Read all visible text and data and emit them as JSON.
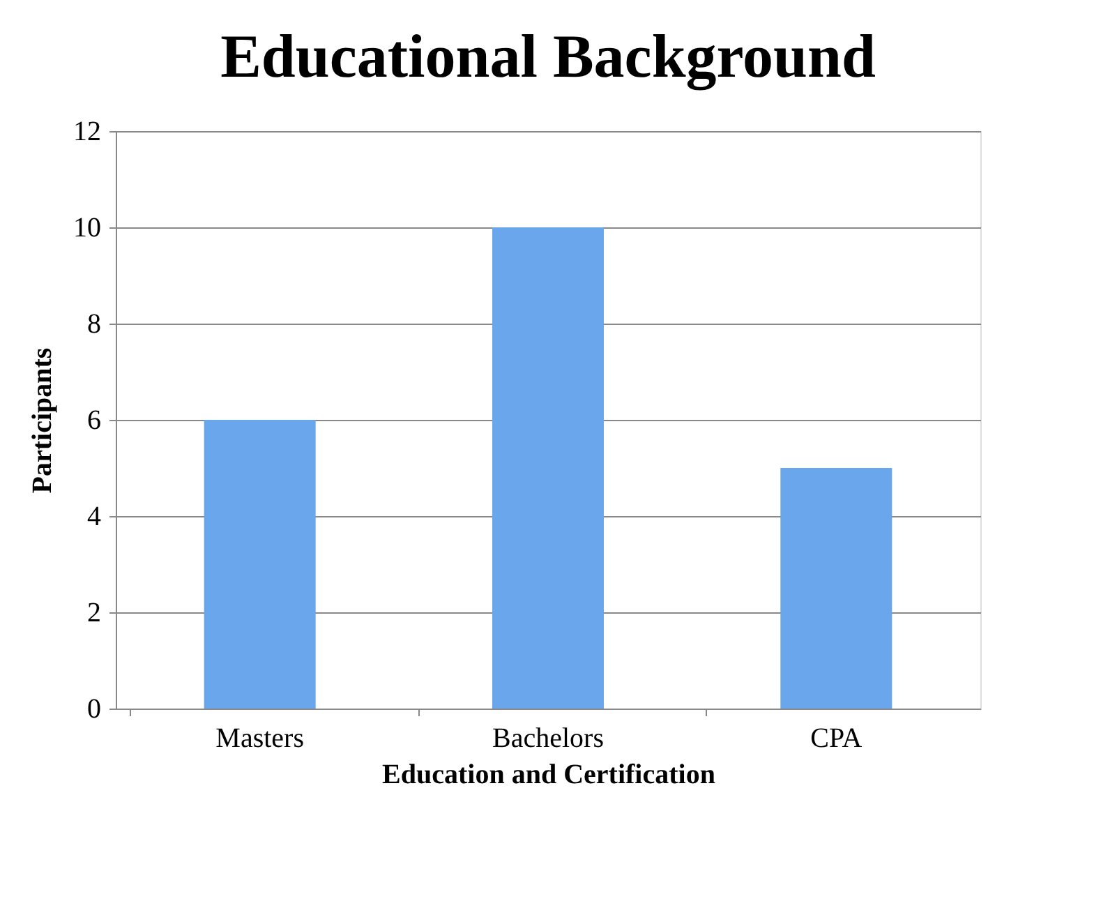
{
  "chart_data": {
    "type": "bar",
    "title": "Educational Background",
    "xlabel": "Education and Certification",
    "ylabel": "Participants",
    "categories": [
      "Masters",
      "Bachelors",
      "CPA"
    ],
    "values": [
      6,
      10,
      5
    ],
    "color": "#6aa6ec",
    "ylim": [
      0,
      12
    ],
    "yticks": [
      0,
      2,
      4,
      6,
      8,
      10,
      12
    ],
    "grid": "y"
  }
}
